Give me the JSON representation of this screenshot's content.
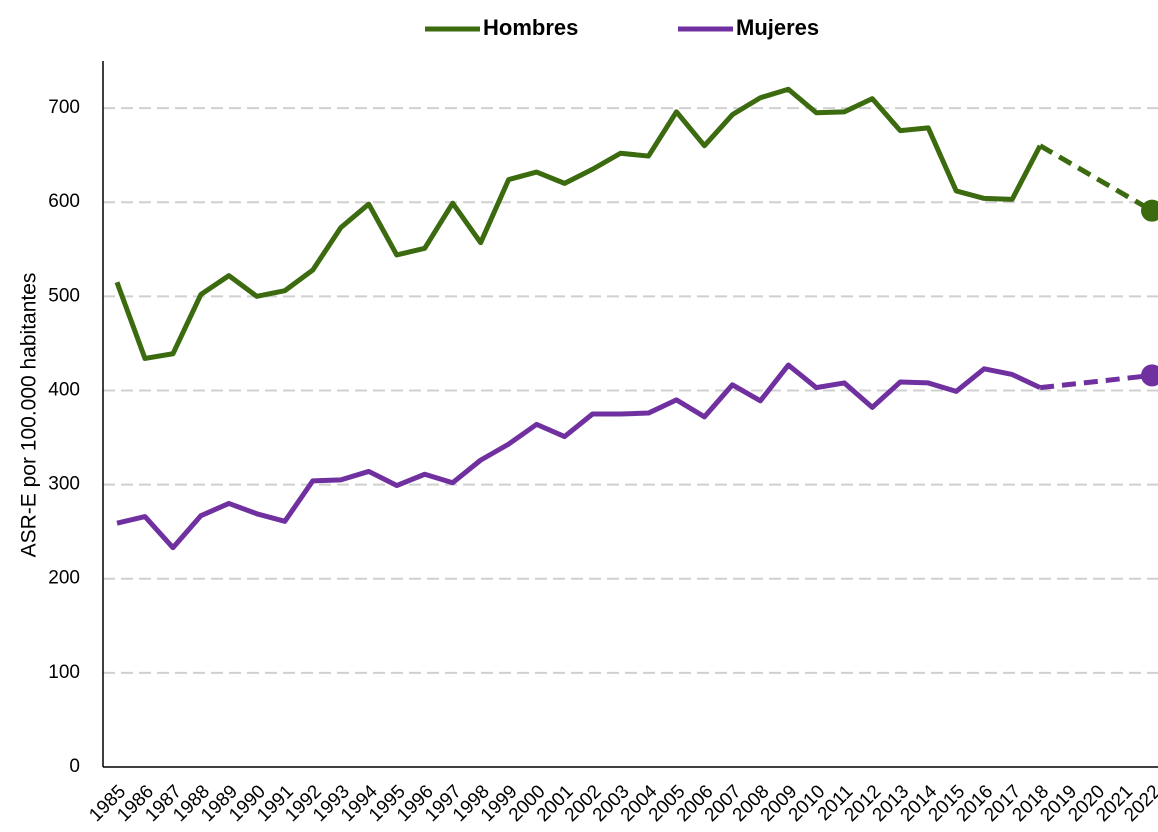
{
  "chart_data": {
    "type": "line",
    "y_label": "ASR-E por 100.000 habitantes",
    "categories": [
      "1985",
      "1986",
      "1987",
      "1988",
      "1989",
      "1990",
      "1991",
      "1992",
      "1993",
      "1994",
      "1995",
      "1996",
      "1997",
      "1998",
      "1999",
      "2000",
      "2001",
      "2002",
      "2003",
      "2004",
      "2005",
      "2006",
      "2007",
      "2008",
      "2009",
      "2010",
      "2011",
      "2012",
      "2013",
      "2014",
      "2015",
      "2016",
      "2017",
      "2018",
      "2019",
      "2020",
      "2021",
      "2022"
    ],
    "series": [
      {
        "name": "Hombres",
        "color": "#3b6a0f",
        "values": [
          515,
          434,
          439,
          502,
          522,
          500,
          506,
          528,
          573,
          598,
          544,
          551,
          599,
          557,
          624,
          632,
          620,
          635,
          652,
          649,
          696,
          660,
          693,
          711,
          720,
          695,
          696,
          710,
          676,
          679,
          612,
          604,
          603,
          660,
          null,
          null,
          null,
          591
        ]
      },
      {
        "name": "Mujeres",
        "color": "#7030a0",
        "values": [
          259,
          266,
          233,
          267,
          280,
          269,
          261,
          304,
          305,
          314,
          299,
          311,
          302,
          326,
          343,
          364,
          351,
          375,
          375,
          376,
          390,
          372,
          406,
          389,
          427,
          403,
          408,
          382,
          409,
          408,
          399,
          423,
          417,
          403,
          null,
          null,
          null,
          416
        ]
      }
    ],
    "ylim": [
      0,
      750
    ],
    "yticks": [
      0,
      100,
      200,
      300,
      400,
      500,
      600,
      700
    ],
    "grid": true,
    "legend": "top"
  }
}
